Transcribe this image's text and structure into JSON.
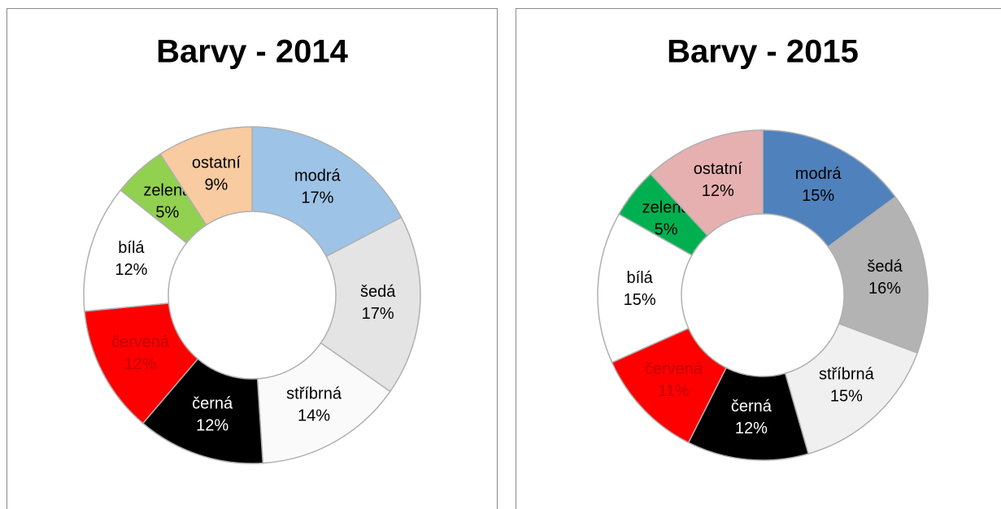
{
  "chart_data": [
    {
      "type": "donut",
      "title": "Barvy - 2014",
      "categories": [
        "modrá",
        "šedá",
        "stříbrná",
        "černá",
        "červená",
        "bílá",
        "zelená",
        "ostatní"
      ],
      "values": [
        17,
        17,
        14,
        12,
        12,
        12,
        5,
        9
      ],
      "value_labels": [
        "17%",
        "17%",
        "14%",
        "12%",
        "12%",
        "12%",
        "5%",
        "9%"
      ],
      "colors": [
        "#9dc3e6",
        "#e4e4e4",
        "#fafafa",
        "#000000",
        "#ff0000",
        "#ffffff",
        "#92d050",
        "#f8cba0"
      ],
      "label_colors": [
        "#000000",
        "#000000",
        "#000000",
        "#ffffff",
        "#c00000",
        "#000000",
        "#000000",
        "#000000"
      ]
    },
    {
      "type": "donut",
      "title": "Barvy - 2015",
      "categories": [
        "modrá",
        "šedá",
        "stříbrná",
        "černá",
        "červená",
        "bílá",
        "zelená",
        "ostatní"
      ],
      "values": [
        15,
        16,
        15,
        12,
        11,
        15,
        5,
        12
      ],
      "value_labels": [
        "15%",
        "16%",
        "15%",
        "12%",
        "11%",
        "15%",
        "5%",
        "12%"
      ],
      "colors": [
        "#4f81bd",
        "#b3b3b3",
        "#f0f0f0",
        "#000000",
        "#ff0000",
        "#ffffff",
        "#00b050",
        "#e6b0b0"
      ],
      "label_colors": [
        "#000000",
        "#000000",
        "#000000",
        "#ffffff",
        "#c00000",
        "#000000",
        "#000000",
        "#000000"
      ]
    }
  ]
}
